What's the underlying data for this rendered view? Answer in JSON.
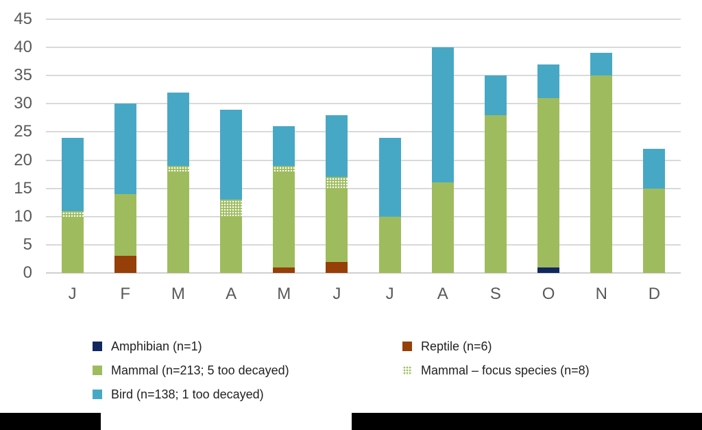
{
  "chart_data": {
    "type": "bar",
    "stacked": true,
    "title": "",
    "xlabel": "",
    "ylabel": "",
    "categories": [
      "J",
      "F",
      "M",
      "A",
      "M",
      "J",
      "J",
      "A",
      "S",
      "O",
      "N",
      "D"
    ],
    "series": [
      {
        "key": "amphibian",
        "name": "Amphibian (n=1)",
        "color": "#12275E",
        "pattern": "solid",
        "values": [
          0,
          0,
          0,
          0,
          0,
          0,
          0,
          0,
          0,
          1,
          0,
          0
        ]
      },
      {
        "key": "reptile",
        "name": "Reptile (n=6)",
        "color": "#963F08",
        "pattern": "solid",
        "values": [
          0,
          3,
          0,
          0,
          1,
          2,
          0,
          0,
          0,
          0,
          0,
          0
        ]
      },
      {
        "key": "mammal",
        "name": "Mammal (n=213; 5 too decayed)",
        "color": "#9EBC5E",
        "pattern": "solid",
        "values": [
          10,
          11,
          18,
          10,
          17,
          13,
          10,
          16,
          28,
          30,
          35,
          15
        ]
      },
      {
        "key": "mammal-focus",
        "name": "Mammal – focus species (n=8)",
        "color": "#9EBC5E",
        "pattern": "dots",
        "values": [
          1,
          0,
          1,
          3,
          1,
          2,
          0,
          0,
          0,
          0,
          0,
          0
        ]
      },
      {
        "key": "bird",
        "name": "Bird (n=138; 1 too decayed)",
        "color": "#47A8C5",
        "pattern": "solid",
        "values": [
          13,
          16,
          13,
          16,
          7,
          11,
          14,
          24,
          7,
          6,
          4,
          7
        ]
      }
    ],
    "monthly_totals": [
      24,
      30,
      32,
      29,
      26,
      28,
      24,
      40,
      35,
      37,
      39,
      22
    ],
    "ylim": [
      0,
      45
    ],
    "yticks": [
      0,
      5,
      10,
      15,
      20,
      25,
      30,
      35,
      40,
      45
    ],
    "grid": true,
    "legend_position": "bottom"
  },
  "legend": {
    "columns": [
      {
        "items": [
          {
            "label": "Amphibian (n=1)",
            "swatch_color": "#12275E",
            "pattern": "solid"
          },
          {
            "label": "Mammal (n=213; 5 too decayed)",
            "swatch_color": "#9EBC5E",
            "pattern": "solid"
          },
          {
            "label": "Bird (n=138; 1 too decayed)",
            "swatch_color": "#47A8C5",
            "pattern": "solid"
          }
        ]
      },
      {
        "items": [
          {
            "label": "Reptile (n=6)",
            "swatch_color": "#963F08",
            "pattern": "solid"
          },
          {
            "label": "Mammal – focus species (n=8)",
            "swatch_color": "#9EBC5E",
            "pattern": "dots-on-white"
          }
        ]
      }
    ]
  },
  "colors": {
    "axis_text": "#595959",
    "gridline": "#D9D9D9",
    "legend_text": "#1F1F1F",
    "background": "#FFFFFF",
    "redaction": "#000000"
  }
}
